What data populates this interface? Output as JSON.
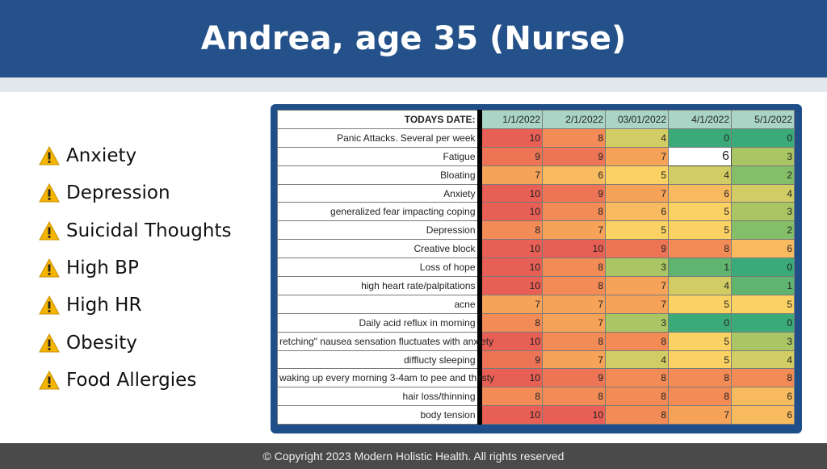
{
  "slide": {
    "title": "Andrea, age 35 (Nurse)",
    "footer": "© Copyright 2023 Modern Holistic Health. All rights reserved"
  },
  "bullets": [
    {
      "label": "Anxiety",
      "icon": "warning-icon"
    },
    {
      "label": "Depression",
      "icon": "warning-icon"
    },
    {
      "label": "Suicidal Thoughts",
      "icon": "warning-icon"
    },
    {
      "label": "High BP",
      "icon": "warning-icon"
    },
    {
      "label": "High HR",
      "icon": "warning-icon"
    },
    {
      "label": "Obesity",
      "icon": "warning-icon"
    },
    {
      "label": "Food Allergies",
      "icon": "warning-icon"
    }
  ],
  "table": {
    "date_label": "TODAYS DATE:",
    "dates": [
      "1/1/2022",
      "2/1/2022",
      "03/01/2022",
      "4/1/2022",
      "5/1/2022"
    ],
    "rows": [
      {
        "label": "Panic Attacks. Several per week",
        "values": [
          "10",
          "8",
          "4",
          "0",
          "0"
        ]
      },
      {
        "label": "Fatigue",
        "values": [
          "9",
          "9",
          "7",
          "6",
          "3"
        ]
      },
      {
        "label": "Bloating",
        "values": [
          "7",
          "6",
          "5",
          "4",
          "2"
        ]
      },
      {
        "label": "Anxiety",
        "values": [
          "10",
          "9",
          "7",
          "6",
          "4"
        ]
      },
      {
        "label": "generalized fear impacting coping",
        "values": [
          "10",
          "8",
          "6",
          "5",
          "3"
        ]
      },
      {
        "label": "Depression",
        "values": [
          "8",
          "7",
          "5",
          "5",
          "2"
        ]
      },
      {
        "label": "Creative block",
        "values": [
          "10",
          "10",
          "9",
          "8",
          "6"
        ]
      },
      {
        "label": "Loss of hope",
        "values": [
          "10",
          "8",
          "3",
          "1",
          "0"
        ]
      },
      {
        "label": "high heart rate/palpitations",
        "values": [
          "10",
          "8",
          "7",
          "4",
          "1"
        ]
      },
      {
        "label": "acne",
        "values": [
          "7",
          "7",
          "7",
          "5",
          "5"
        ]
      },
      {
        "label": "Daily acid reflux in morning",
        "values": [
          "8",
          "7",
          "3",
          "0",
          "0"
        ]
      },
      {
        "label": "retching\" nausea sensation fluctuates with anxiety",
        "values": [
          "10",
          "8",
          "8",
          "5",
          "3"
        ]
      },
      {
        "label": "difflucty sleeping",
        "values": [
          "9",
          "7",
          "4",
          "5",
          "4"
        ]
      },
      {
        "label": "waking up every morning 3-4am to pee and thirsty",
        "values": [
          "10",
          "9",
          "8",
          "8",
          "8"
        ]
      },
      {
        "label": "hair loss/thinning",
        "values": [
          "8",
          "8",
          "8",
          "8",
          "6"
        ]
      },
      {
        "label": "body tension",
        "values": [
          "10",
          "10",
          "8",
          "7",
          "6"
        ]
      }
    ]
  },
  "colors": {
    "title_bar": "#245189",
    "table_frame": "#1f4e89",
    "header_fill": "#a9d4c6",
    "footer_bar": "#4a4a4a",
    "warning_yellow": "#f5b400"
  }
}
